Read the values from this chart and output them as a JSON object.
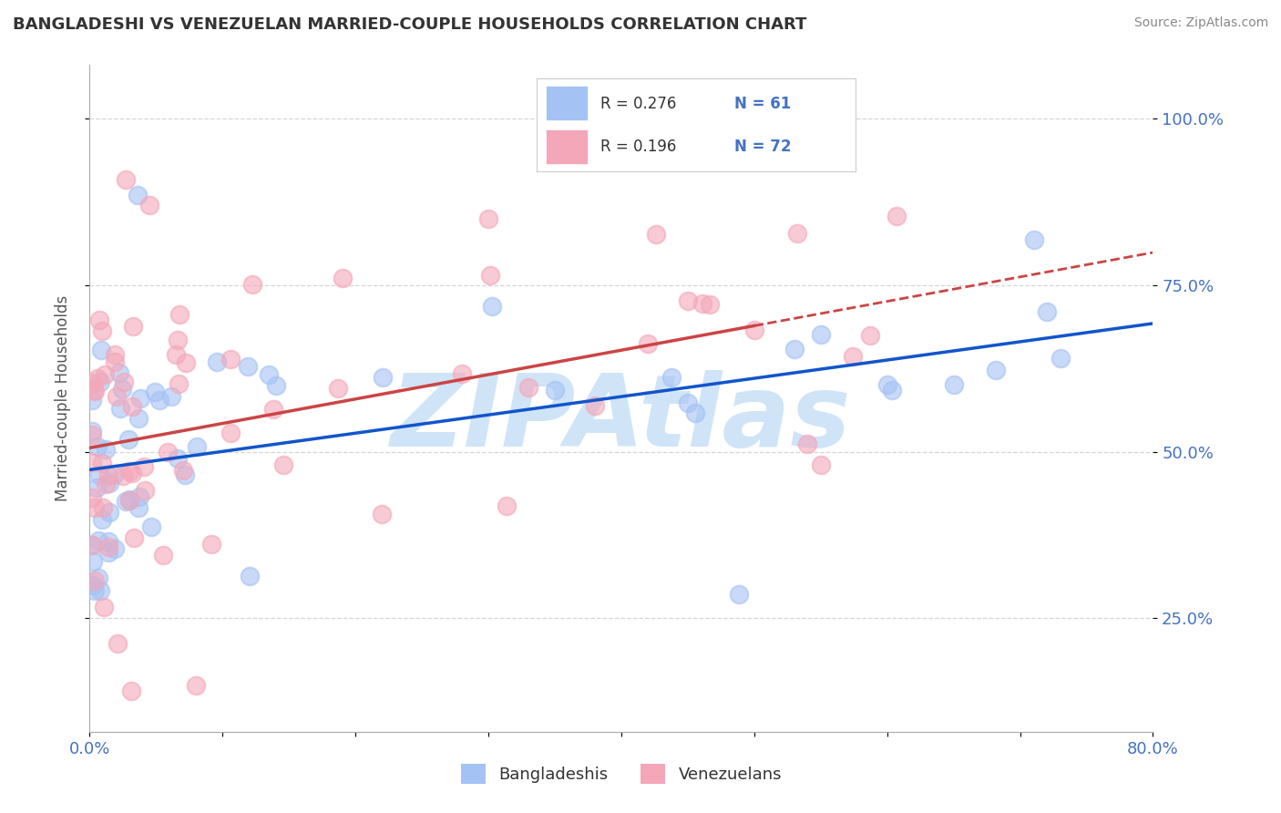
{
  "title": "BANGLADESHI VS VENEZUELAN MARRIED-COUPLE HOUSEHOLDS CORRELATION CHART",
  "source": "Source: ZipAtlas.com",
  "ylabel": "Married-couple Households",
  "yticklabels": [
    "25.0%",
    "50.0%",
    "75.0%",
    "100.0%"
  ],
  "yticks": [
    0.25,
    0.5,
    0.75,
    1.0
  ],
  "xlim": [
    0.0,
    0.8
  ],
  "ylim": [
    0.08,
    1.08
  ],
  "legend_r1": "0.276",
  "legend_n1": "61",
  "legend_r2": "0.196",
  "legend_n2": "72",
  "blue_color": "#a4c2f4",
  "pink_color": "#f4a7b9",
  "blue_line_color": "#1155cc",
  "pink_line_color": "#cc4444",
  "watermark": "ZIPAtlas",
  "watermark_color": "#d0e4f7",
  "bg_color": "#ffffff",
  "title_color": "#333333",
  "axis_label_color": "#4472c4",
  "grid_color": "#cccccc",
  "legend_text_color": "#333333",
  "legend_num_color": "#4472c4"
}
